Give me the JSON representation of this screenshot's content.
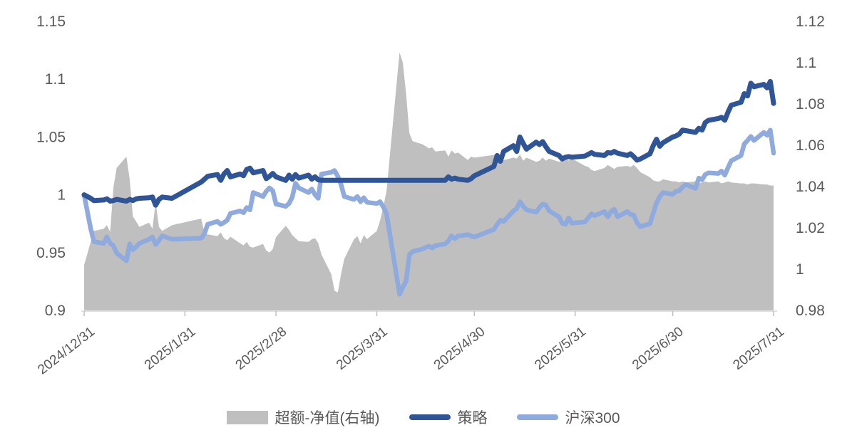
{
  "chart_data": {
    "type": "line",
    "title": "",
    "colors": {
      "strategy_line": "#2F5597",
      "csi300_line": "#8FAADC",
      "excess_area": "#BFBFBF",
      "axis_text": "#595959",
      "axis_line": "#D9D9D9",
      "tick_mark": "#BFBFBF"
    },
    "legend": [
      {
        "label": "超额-净值(右轴)",
        "type": "area",
        "axis": "right"
      },
      {
        "label": "策略",
        "type": "line",
        "axis": "left"
      },
      {
        "label": "沪深300",
        "type": "line",
        "axis": "left"
      }
    ],
    "left_axis": {
      "min": 0.9,
      "max": 1.15,
      "ticks": [
        {
          "label": "1.15",
          "value": 1.15
        },
        {
          "label": "1.1",
          "value": 1.1
        },
        {
          "label": "1.05",
          "value": 1.05
        },
        {
          "label": "1",
          "value": 1.0
        },
        {
          "label": "0.95",
          "value": 0.95
        },
        {
          "label": "0.9",
          "value": 0.9
        }
      ]
    },
    "right_axis": {
      "min": 0.98,
      "max": 1.12,
      "ticks": [
        {
          "label": "1.12",
          "value": 1.12
        },
        {
          "label": "1.1",
          "value": 1.1
        },
        {
          "label": "1.08",
          "value": 1.08
        },
        {
          "label": "1.06",
          "value": 1.06
        },
        {
          "label": "1.04",
          "value": 1.04
        },
        {
          "label": "1.02",
          "value": 1.02
        },
        {
          "label": "1",
          "value": 1.0
        },
        {
          "label": "0.98",
          "value": 0.98
        }
      ]
    },
    "x_axis": {
      "start": "2024/12/31",
      "end": "2025/7/31",
      "ticks": [
        "2024/12/31",
        "2025/1/31",
        "2025/2/28",
        "2025/3/31",
        "2025/4/30",
        "2025/5/31",
        "2025/6/30",
        "2025/7/31"
      ]
    },
    "dates": [
      "2024/12/31",
      "2025/1/2",
      "2025/1/3",
      "2025/1/6",
      "2025/1/7",
      "2025/1/8",
      "2025/1/9",
      "2025/1/10",
      "2025/1/13",
      "2025/1/14",
      "2025/1/15",
      "2025/1/16",
      "2025/1/17",
      "2025/1/20",
      "2025/1/21",
      "2025/1/22",
      "2025/1/23",
      "2025/1/24",
      "2025/1/27",
      "2025/2/5",
      "2025/2/6",
      "2025/2/7",
      "2025/2/10",
      "2025/2/11",
      "2025/2/12",
      "2025/2/13",
      "2025/2/14",
      "2025/2/17",
      "2025/2/18",
      "2025/2/19",
      "2025/2/20",
      "2025/2/21",
      "2025/2/24",
      "2025/2/25",
      "2025/2/26",
      "2025/2/27",
      "2025/2/28",
      "2025/3/3",
      "2025/3/4",
      "2025/3/5",
      "2025/3/6",
      "2025/3/7",
      "2025/3/10",
      "2025/3/11",
      "2025/3/12",
      "2025/3/13",
      "2025/3/14",
      "2025/3/17",
      "2025/3/18",
      "2025/3/19",
      "2025/3/20",
      "2025/3/21",
      "2025/3/24",
      "2025/3/25",
      "2025/3/26",
      "2025/3/27",
      "2025/3/28",
      "2025/3/31",
      "2025/4/1",
      "2025/4/2",
      "2025/4/3",
      "2025/4/7",
      "2025/4/8",
      "2025/4/9",
      "2025/4/10",
      "2025/4/11",
      "2025/4/14",
      "2025/4/15",
      "2025/4/16",
      "2025/4/17",
      "2025/4/18",
      "2025/4/21",
      "2025/4/22",
      "2025/4/23",
      "2025/4/24",
      "2025/4/25",
      "2025/4/28",
      "2025/4/29",
      "2025/4/30",
      "2025/5/6",
      "2025/5/7",
      "2025/5/8",
      "2025/5/9",
      "2025/5/12",
      "2025/5/13",
      "2025/5/14",
      "2025/5/15",
      "2025/5/16",
      "2025/5/19",
      "2025/5/20",
      "2025/5/21",
      "2025/5/22",
      "2025/5/23",
      "2025/5/26",
      "2025/5/27",
      "2025/5/28",
      "2025/5/29",
      "2025/5/30",
      "2025/6/3",
      "2025/6/4",
      "2025/6/5",
      "2025/6/6",
      "2025/6/9",
      "2025/6/10",
      "2025/6/11",
      "2025/6/12",
      "2025/6/13",
      "2025/6/16",
      "2025/6/17",
      "2025/6/18",
      "2025/6/19",
      "2025/6/20",
      "2025/6/23",
      "2025/6/24",
      "2025/6/25",
      "2025/6/26",
      "2025/6/27",
      "2025/6/30",
      "2025/7/1",
      "2025/7/2",
      "2025/7/3",
      "2025/7/4",
      "2025/7/7",
      "2025/7/8",
      "2025/7/9",
      "2025/7/10",
      "2025/7/11",
      "2025/7/14",
      "2025/7/15",
      "2025/7/16",
      "2025/7/17",
      "2025/7/18",
      "2025/7/21",
      "2025/7/22",
      "2025/7/23",
      "2025/7/24",
      "2025/7/25",
      "2025/7/28",
      "2025/7/29",
      "2025/7/30",
      "2025/7/31"
    ],
    "series": [
      {
        "name": "策略",
        "axis": "left",
        "values": [
          1.0,
          0.997,
          0.995,
          0.9955,
          0.9965,
          0.9945,
          0.995,
          0.996,
          0.9945,
          0.996,
          0.995,
          0.9965,
          0.997,
          0.9975,
          0.998,
          0.991,
          0.996,
          0.998,
          0.997,
          1.011,
          1.0135,
          1.016,
          1.0175,
          1.0125,
          1.018,
          1.021,
          1.0155,
          1.018,
          1.0165,
          1.022,
          1.023,
          1.019,
          1.021,
          1.014,
          1.016,
          1.0185,
          1.0155,
          1.0125,
          1.017,
          1.0135,
          1.0175,
          1.0145,
          1.017,
          1.0135,
          1.0155,
          1.013,
          1.0125,
          1.0125,
          1.0125,
          1.0125,
          1.0125,
          1.0125,
          1.0125,
          1.0125,
          1.0125,
          1.0125,
          1.0125,
          1.0125,
          1.0125,
          1.0125,
          1.0125,
          1.0125,
          1.0125,
          1.0125,
          1.0125,
          1.0125,
          1.0125,
          1.0125,
          1.0125,
          1.0125,
          1.0125,
          1.0125,
          1.0155,
          1.0135,
          1.0145,
          1.0135,
          1.0125,
          1.014,
          1.0165,
          1.0245,
          1.034,
          1.029,
          1.0375,
          1.0425,
          1.0375,
          1.05,
          1.0445,
          1.0395,
          1.0455,
          1.0435,
          1.046,
          1.0415,
          1.0375,
          1.034,
          1.031,
          1.0325,
          1.033,
          1.0325,
          1.0335,
          1.035,
          1.0365,
          1.035,
          1.034,
          1.0365,
          1.036,
          1.0375,
          1.036,
          1.034,
          1.0355,
          1.033,
          1.03,
          1.031,
          1.0355,
          1.0425,
          1.048,
          1.042,
          1.045,
          1.05,
          1.051,
          1.0525,
          1.056,
          1.0555,
          1.054,
          1.0575,
          1.056,
          1.0625,
          1.0645,
          1.066,
          1.067,
          1.0645,
          1.0715,
          1.0775,
          1.08,
          1.0875,
          1.0855,
          1.0965,
          1.0935,
          1.0955,
          1.0925,
          1.098,
          1.079
        ]
      },
      {
        "name": "沪深300",
        "axis": "left",
        "values": [
          1.0,
          0.971,
          0.9595,
          0.958,
          0.9635,
          0.958,
          0.956,
          0.9495,
          0.943,
          0.9575,
          0.9525,
          0.955,
          0.958,
          0.9615,
          0.9635,
          0.957,
          0.9605,
          0.9645,
          0.9615,
          0.9625,
          0.9665,
          0.9745,
          0.977,
          0.9745,
          0.976,
          0.978,
          0.984,
          0.986,
          0.9845,
          0.989,
          0.987,
          1.002,
          0.9985,
          1.003,
          1.006,
          1.0035,
          0.992,
          0.99,
          0.9925,
          0.998,
          1.01,
          1.006,
          1.002,
          1.005,
          1.0,
          0.997,
          1.018,
          1.0195,
          1.021,
          1.016,
          1.009,
          0.9985,
          0.996,
          0.9985,
          0.994,
          0.9975,
          0.9935,
          0.9925,
          0.994,
          0.9895,
          0.9835,
          0.914,
          0.92,
          0.9255,
          0.948,
          0.951,
          0.953,
          0.9545,
          0.9555,
          0.954,
          0.956,
          0.9575,
          0.96,
          0.9645,
          0.962,
          0.9645,
          0.9655,
          0.9645,
          0.9635,
          0.97,
          0.9745,
          0.978,
          0.977,
          0.986,
          0.988,
          0.994,
          0.99,
          0.987,
          0.985,
          0.989,
          0.992,
          0.991,
          0.986,
          0.981,
          0.9755,
          0.9745,
          0.98,
          0.9755,
          0.9765,
          0.98,
          0.9835,
          0.982,
          0.9855,
          0.981,
          0.9855,
          0.9875,
          0.981,
          0.9855,
          0.983,
          0.9825,
          0.976,
          0.9725,
          0.975,
          0.984,
          0.993,
          0.9985,
          1.002,
          1.0005,
          1.003,
          1.0035,
          1.0065,
          1.009,
          1.0055,
          1.0145,
          1.013,
          1.0175,
          1.019,
          1.0185,
          1.0205,
          1.017,
          1.0235,
          1.0295,
          1.034,
          1.044,
          1.047,
          1.0505,
          1.047,
          1.054,
          1.0515,
          1.056,
          1.036
        ]
      },
      {
        "name": "超额-净值(右轴)",
        "axis": "right",
        "values": [
          1.002,
          1.013,
          1.0185,
          1.0195,
          1.0213,
          1.018,
          1.0395,
          1.049,
          1.0545,
          1.0435,
          1.0255,
          1.023,
          1.0205,
          1.0225,
          1.0195,
          1.0325,
          1.0205,
          1.0185,
          1.0213,
          1.0245,
          1.0175,
          1.0168,
          1.016,
          1.0178,
          1.015,
          1.014,
          1.0157,
          1.0125,
          1.0115,
          1.0132,
          1.0108,
          1.0104,
          1.0122,
          1.009,
          1.008,
          1.0097,
          1.0155,
          1.021,
          1.019,
          1.0165,
          1.015,
          1.0135,
          1.0132,
          1.0145,
          1.015,
          1.0125,
          1.007,
          0.9975,
          0.9895,
          0.9887,
          0.9975,
          1.005,
          1.0145,
          1.016,
          1.0125,
          1.0165,
          1.0145,
          1.0185,
          1.0235,
          1.03,
          1.038,
          1.105,
          1.1,
          1.085,
          1.066,
          1.062,
          1.0605,
          1.0595,
          1.0585,
          1.059,
          1.057,
          1.0575,
          1.0545,
          1.0575,
          1.056,
          1.0565,
          1.0528,
          1.0545,
          1.054,
          1.0553,
          1.056,
          1.0535,
          1.0528,
          1.054,
          1.0535,
          1.0555,
          1.0525,
          1.054,
          1.052,
          1.0525,
          1.054,
          1.0525,
          1.0535,
          1.052,
          1.0525,
          1.0545,
          1.0525,
          1.0535,
          1.05,
          1.0495,
          1.048,
          1.0475,
          1.049,
          1.0505,
          1.0495,
          1.0485,
          1.0495,
          1.05,
          1.0495,
          1.0505,
          1.049,
          1.047,
          1.0445,
          1.043,
          1.0425,
          1.0425,
          1.0435,
          1.0425,
          1.0425,
          1.042,
          1.0425,
          1.042,
          1.0425,
          1.0415,
          1.042,
          1.0425,
          1.042,
          1.0425,
          1.0415,
          1.042,
          1.0425,
          1.042,
          1.0415,
          1.0415,
          1.041,
          1.0415,
          1.0415,
          1.041,
          1.041,
          1.0405,
          1.0405
        ]
      }
    ]
  }
}
